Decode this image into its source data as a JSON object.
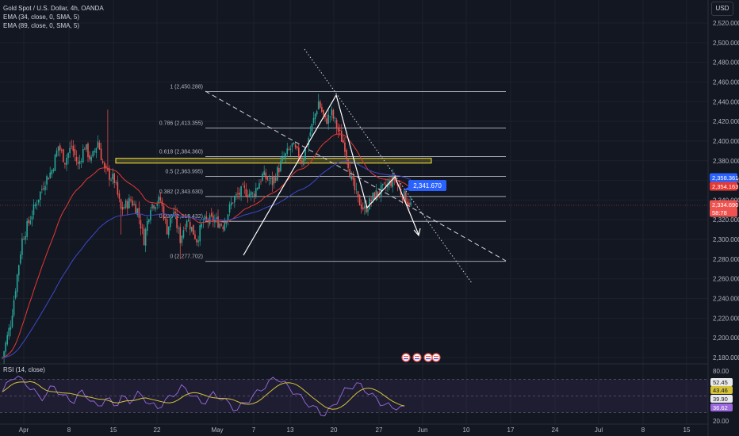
{
  "header": {
    "symbol": "Gold Spot / U.S. Dollar, 4h, OANDA",
    "ema1": "EMA (34, close, 0, SMA, 5)",
    "ema2": "EMA (89, close, 0, SMA, 5)",
    "currency": "USD",
    "rsi_title": "RSI (14, close)"
  },
  "colors": {
    "background": "#131722",
    "up": "#26a69a",
    "down": "#ef5350",
    "ema34": "#e53935",
    "ema89": "#3d48c8",
    "fib": "#d1d4dc",
    "zone": "#ffeb3b",
    "rsi": "#9c6ade",
    "rsi_ma": "#d4c23a",
    "callout": "#2962ff"
  },
  "chart_data": {
    "type": "candlestick",
    "y_range": [
      2170,
      2530
    ],
    "y_ticks": [
      "2,180.000",
      "2,200.000",
      "2,220.000",
      "2,240.000",
      "2,260.000",
      "2,280.000",
      "2,300.000",
      "2,320.000",
      "2,340.000",
      "2,360.000",
      "2,380.000",
      "2,400.000",
      "2,420.000",
      "2,440.000",
      "2,460.000",
      "2,480.000",
      "2,500.000",
      "2,520.000"
    ],
    "x_ticks": [
      "Apr",
      "8",
      "15",
      "22",
      "May",
      "7",
      "13",
      "20",
      "27",
      "Jun",
      "10",
      "17",
      "24",
      "Jul",
      "8",
      "15"
    ],
    "anchors": [
      [
        0,
        2180
      ],
      [
        5,
        2215
      ],
      [
        12,
        2300
      ],
      [
        20,
        2335
      ],
      [
        26,
        2360
      ],
      [
        30,
        2370
      ],
      [
        34,
        2395
      ],
      [
        38,
        2380
      ],
      [
        42,
        2395
      ],
      [
        46,
        2375
      ],
      [
        50,
        2395
      ],
      [
        54,
        2380
      ],
      [
        58,
        2400
      ],
      [
        62,
        2370
      ],
      [
        68,
        2360
      ],
      [
        72,
        2330
      ],
      [
        78,
        2340
      ],
      [
        82,
        2330
      ],
      [
        86,
        2300
      ],
      [
        90,
        2335
      ],
      [
        96,
        2340
      ],
      [
        100,
        2310
      ],
      [
        104,
        2328
      ],
      [
        108,
        2300
      ],
      [
        112,
        2322
      ],
      [
        118,
        2300
      ],
      [
        122,
        2318
      ],
      [
        128,
        2320
      ],
      [
        134,
        2315
      ],
      [
        140,
        2340
      ],
      [
        146,
        2350
      ],
      [
        152,
        2345
      ],
      [
        158,
        2365
      ],
      [
        164,
        2358
      ],
      [
        170,
        2380
      ],
      [
        176,
        2395
      ],
      [
        182,
        2380
      ],
      [
        188,
        2415
      ],
      [
        192,
        2440
      ],
      [
        196,
        2420
      ],
      [
        200,
        2428
      ],
      [
        204,
        2410
      ],
      [
        208,
        2395
      ],
      [
        212,
        2360
      ],
      [
        216,
        2340
      ],
      [
        220,
        2330
      ],
      [
        226,
        2345
      ],
      [
        232,
        2352
      ],
      [
        238,
        2362
      ],
      [
        242,
        2348
      ],
      [
        248,
        2335
      ]
    ],
    "fib_levels": [
      {
        "label": "1 (2,450.288)",
        "value": 2450.288
      },
      {
        "label": "0.786 (2,413.355)",
        "value": 2413.355
      },
      {
        "label": "0.618 (2,384.360)",
        "value": 2384.36
      },
      {
        "label": "0.5 (2,363.995)",
        "value": 2363.995
      },
      {
        "label": "0.382 (2,343.630)",
        "value": 2343.63
      },
      {
        "label": "0.236 (2,318.432)",
        "value": 2318.432
      },
      {
        "label": "0 (2,277.702)",
        "value": 2277.702
      }
    ],
    "price_labels": [
      {
        "text": "2,358.361",
        "value": 2358.361,
        "color": "#2962ff"
      },
      {
        "text": "2,354.163",
        "value": 2354.163,
        "color": "#e53935"
      },
      {
        "text": "2,334.690",
        "value": 2334.69,
        "color": "#ef5350"
      },
      {
        "text": "58:78",
        "value": 2329.5,
        "color": "#ef5350"
      }
    ],
    "callout": {
      "text": "2,341.670",
      "value": 2341.67
    },
    "rsi": {
      "y_ticks": [
        "80.00",
        "20.00"
      ],
      "levels": [
        {
          "text": "52.45",
          "color": "#e9e9ea",
          "text_color": "#131722"
        },
        {
          "text": "43.46",
          "color": "#d4c23a",
          "text_color": "#131722"
        },
        {
          "text": "39.90",
          "color": "#e9e9ea",
          "text_color": "#131722"
        },
        {
          "text": "36.62",
          "color": "#9c6ade",
          "text_color": "#ffffff"
        }
      ],
      "values": [
        55,
        62,
        70,
        74,
        72,
        68,
        65,
        60,
        55,
        50,
        48,
        52,
        58,
        62,
        56,
        50,
        48,
        46,
        44,
        50,
        55,
        52,
        45,
        40,
        38,
        42,
        46,
        44,
        40,
        42,
        48,
        46,
        44,
        48,
        52,
        50,
        46,
        40,
        38,
        36,
        40,
        44,
        48,
        52,
        56,
        60,
        58,
        54,
        50,
        46,
        42,
        44,
        48,
        52,
        50,
        48,
        44,
        40,
        36,
        34,
        38,
        42,
        46,
        50,
        54,
        58,
        62,
        66,
        70,
        72,
        68,
        64,
        60,
        56,
        52,
        48,
        44,
        40,
        36,
        34,
        30,
        28,
        32,
        38,
        44,
        50,
        56,
        60,
        62,
        64,
        62,
        58,
        54,
        50,
        46,
        42,
        40,
        38,
        36,
        37,
        36,
        35
      ]
    }
  }
}
